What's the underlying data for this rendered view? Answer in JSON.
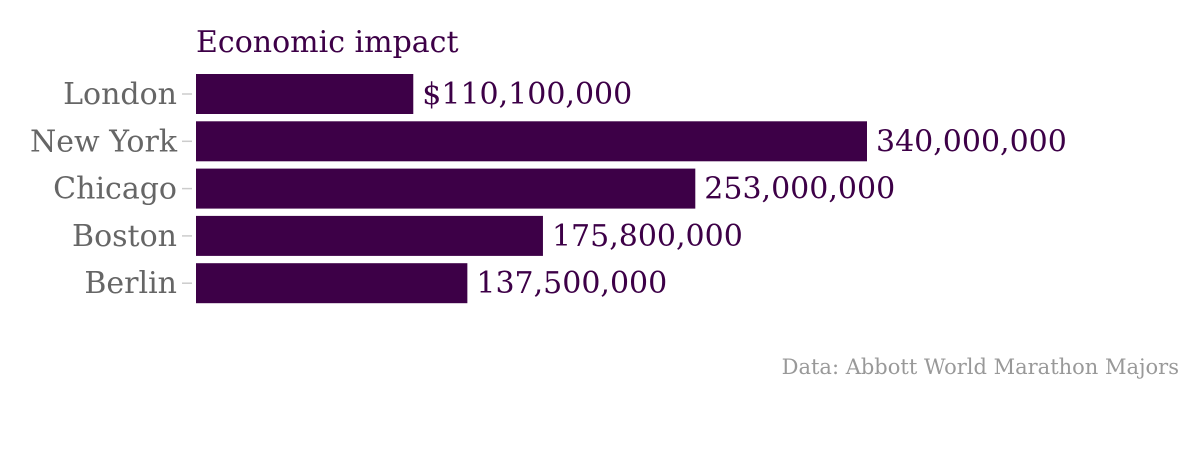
{
  "colors": {
    "bar": "#3d0047",
    "title": "#3d0047",
    "value_label": "#3d0047",
    "category_label": "#666666",
    "tick": "#cccccc",
    "source": "#999999"
  },
  "chart_data": {
    "type": "bar",
    "orientation": "horizontal",
    "title": "Economic impact",
    "xlabel": "",
    "ylabel": "",
    "grid": false,
    "legend": "none",
    "xlim": [
      0,
      340000000
    ],
    "categories": [
      "London",
      "New York",
      "Chicago",
      "Boston",
      "Berlin"
    ],
    "values": [
      110100000,
      340000000,
      253000000,
      175800000,
      137500000
    ],
    "value_labels": [
      "$110,100,000",
      "340,000,000",
      "253,000,000",
      "175,800,000",
      "137,500,000"
    ]
  },
  "source_note": "Data: Abbott World Marathon Majors"
}
